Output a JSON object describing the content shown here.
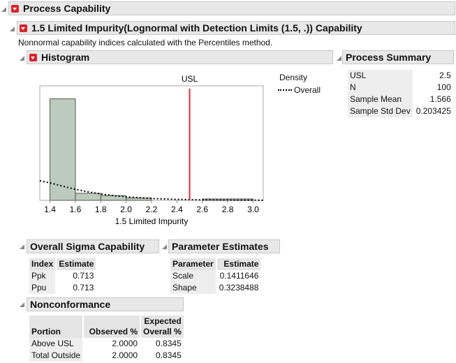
{
  "titles": {
    "process_capability": "Process Capability",
    "capability": "1.5 Limited Impurity(Lognormal with Detection Limits (1.5, .)) Capability",
    "note": "Nonnormal capability indices calculated with the Percentiles method.",
    "histogram": "Histogram",
    "process_summary": "Process Summary",
    "overall_sigma": "Overall Sigma Capability",
    "parameter_estimates": "Parameter Estimates",
    "nonconformance": "Nonconformance"
  },
  "legend": {
    "title": "Density",
    "overall": "Overall"
  },
  "process_summary": [
    {
      "label": "USL",
      "value": "2.5"
    },
    {
      "label": "N",
      "value": "100"
    },
    {
      "label": "Sample Mean",
      "value": "1.566"
    },
    {
      "label": "Sample Std Dev",
      "value": "0.203425"
    }
  ],
  "overall_sigma": {
    "headers": [
      "Index",
      "Estimate"
    ],
    "rows": [
      [
        "Ppk",
        "0.713"
      ],
      [
        "Ppu",
        "0.713"
      ]
    ]
  },
  "parameter_estimates": {
    "headers": [
      "Parameter",
      "Estimate"
    ],
    "rows": [
      [
        "Scale",
        "0.1411646"
      ],
      [
        "Shape",
        "0.3238488"
      ]
    ]
  },
  "nonconformance": {
    "headers": [
      "Portion",
      "Observed %",
      "Expected",
      "Overall %"
    ],
    "rows": [
      [
        "Above USL",
        "2.0000",
        "0.8345"
      ],
      [
        "Total Outside",
        "2.0000",
        "0.8345"
      ]
    ]
  },
  "chart_data": {
    "type": "bar",
    "xlabel": "1.5 Limited Impurity",
    "xlim": [
      1.32,
      3.08
    ],
    "ylim": [
      0,
      4.85
    ],
    "xticks": [
      "1.4",
      "1.6",
      "1.8",
      "2.0",
      "2.2",
      "2.4",
      "2.6",
      "2.8",
      "3.0"
    ],
    "bins": [
      [
        1.4,
        1.6
      ],
      [
        1.6,
        1.8
      ],
      [
        1.8,
        2.0
      ],
      [
        2.0,
        2.2
      ],
      [
        2.2,
        2.4
      ],
      [
        2.4,
        2.6
      ],
      [
        2.6,
        2.8
      ],
      [
        2.8,
        3.0
      ]
    ],
    "values": [
      4.3,
      0.3,
      0.2,
      0.1,
      0,
      0,
      0.06,
      0.06
    ],
    "usl": {
      "label": "USL",
      "value": 2.5,
      "color": "#e8293f"
    },
    "bar_color": "#bccbbd",
    "curve": {
      "name": "Overall",
      "x": [
        1.32,
        1.4,
        1.5,
        1.6,
        1.7,
        1.8,
        1.9,
        2.0,
        2.2,
        2.4,
        2.6,
        2.8,
        3.08
      ],
      "y": [
        0.83,
        0.74,
        0.6,
        0.47,
        0.36,
        0.27,
        0.2,
        0.15,
        0.08,
        0.04,
        0.02,
        0.01,
        0.005
      ]
    }
  }
}
